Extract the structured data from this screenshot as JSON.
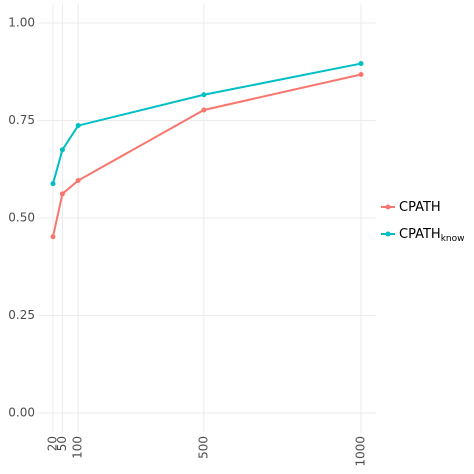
{
  "chart_data": {
    "type": "line",
    "x": [
      20,
      50,
      100,
      500,
      1000
    ],
    "series": [
      {
        "name": "CPATH",
        "color": "#F8766D",
        "values": [
          0.452,
          0.562,
          0.596,
          0.777,
          0.868
        ]
      },
      {
        "name": "CPATH",
        "name_subscript": "know",
        "color": "#00BFC4",
        "values": [
          0.588,
          0.675,
          0.737,
          0.816,
          0.896
        ]
      }
    ],
    "xlim": [
      -29,
      1049
    ],
    "xticks": [
      20,
      50,
      100,
      500,
      1000
    ],
    "ylim": [
      -0.05,
      1.05
    ],
    "yticks": [
      {
        "value": 0,
        "label": "0.00"
      },
      {
        "value": 0.25,
        "label": "0.25"
      },
      {
        "value": 0.5,
        "label": "0.50"
      },
      {
        "value": 0.75,
        "label": "0.75"
      },
      {
        "value": 1,
        "label": "1.00"
      }
    ],
    "grid": true,
    "legend": "right"
  }
}
